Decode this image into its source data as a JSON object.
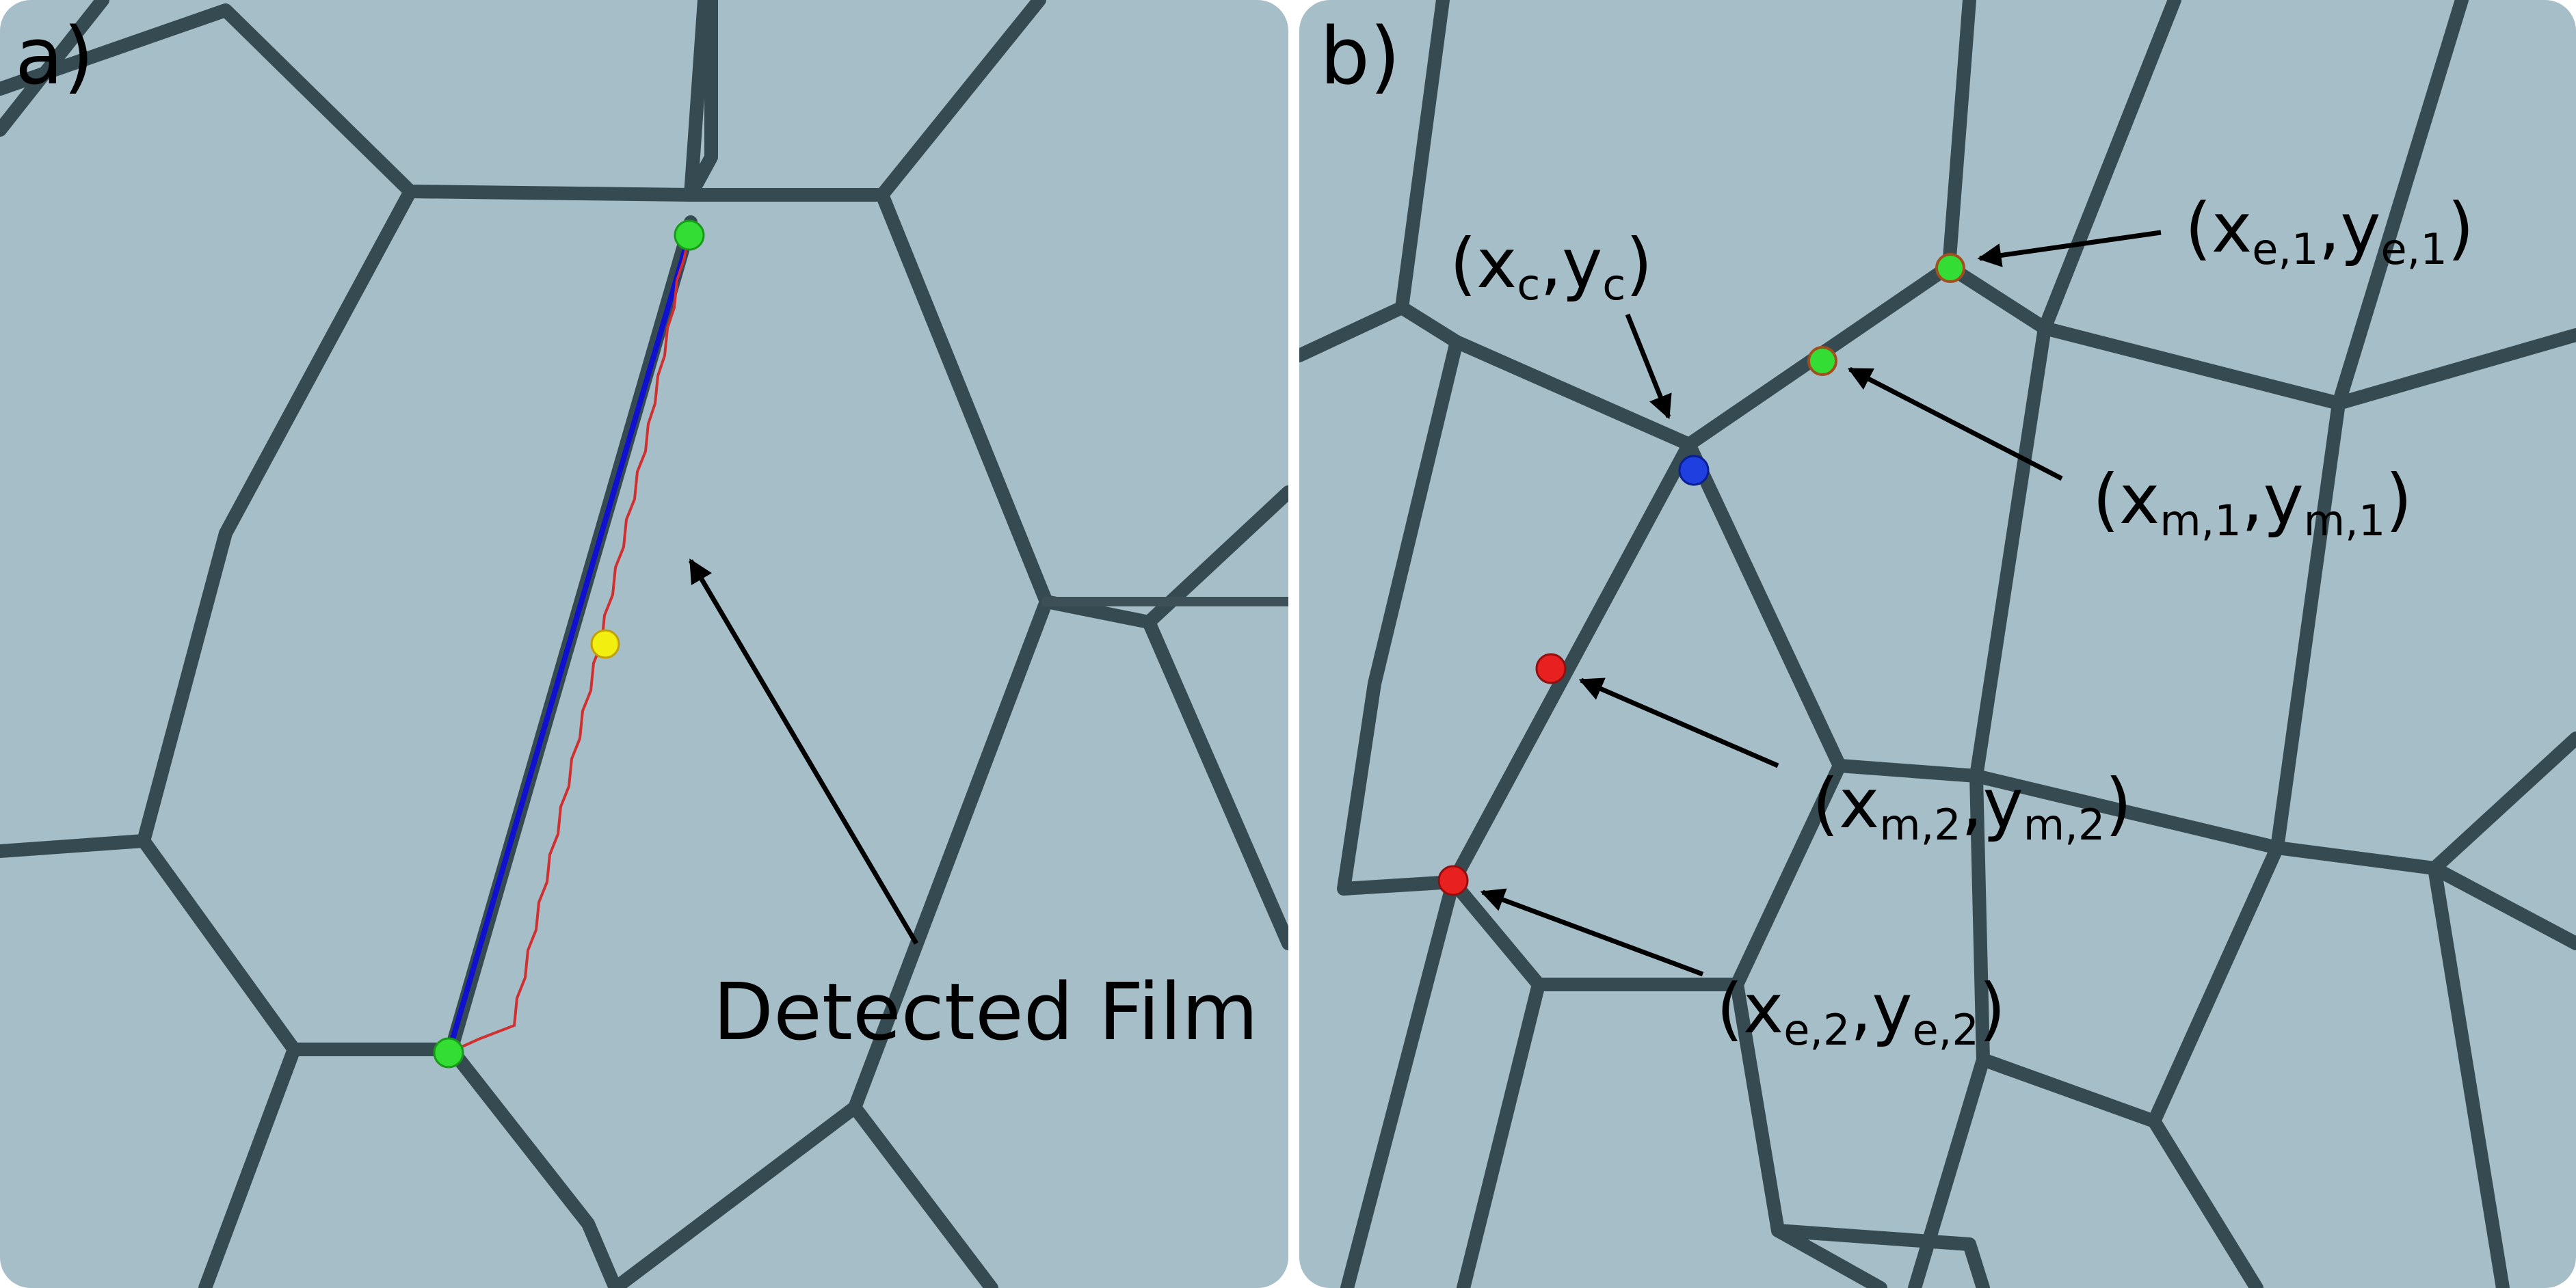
{
  "panels": [
    {
      "id": "a",
      "label": "a)",
      "annotation": "Detected Film"
    },
    {
      "id": "b",
      "label": "b)",
      "points": [
        {
          "id": "c",
          "name": "x",
          "sub": "c",
          "name2": "y",
          "sub2": "c",
          "color": "#1f3fe0"
        },
        {
          "id": "e1",
          "name": "x",
          "sub": "e,1",
          "name2": "y",
          "sub2": "e,1",
          "color": "#33dd33"
        },
        {
          "id": "m1",
          "name": "x",
          "sub": "m,1",
          "name2": "y",
          "sub2": "m,1",
          "color": "#33dd33"
        },
        {
          "id": "m2",
          "name": "x",
          "sub": "m,2",
          "name2": "y",
          "sub2": "m,2",
          "color": "#e82020"
        },
        {
          "id": "e2",
          "name": "x",
          "sub": "e,2",
          "name2": "y",
          "sub2": "e,2",
          "color": "#e82020"
        }
      ]
    }
  ],
  "colors": {
    "background": "#a6bec7",
    "film_edge": "#364a52",
    "fit_line": "#1010d0",
    "detected_film": "#d03030",
    "endpoint": "#33dd33",
    "midpoint": "#f2ee10"
  }
}
